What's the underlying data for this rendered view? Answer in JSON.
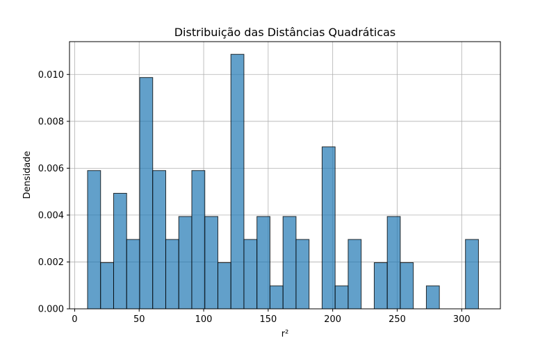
{
  "chart_data": {
    "type": "bar",
    "title": "Distribuição das Distâncias Quadráticas",
    "xlabel": "r²",
    "ylabel": "Densidade",
    "xlim": [
      -4,
      330
    ],
    "ylim": [
      0,
      0.0114
    ],
    "xticks": [
      0,
      50,
      100,
      150,
      200,
      250,
      300
    ],
    "xtick_labels": [
      "0",
      "50",
      "100",
      "150",
      "200",
      "250",
      "300"
    ],
    "yticks": [
      0.0,
      0.002,
      0.004,
      0.006,
      0.008,
      0.01
    ],
    "ytick_labels": [
      "0.000",
      "0.002",
      "0.004",
      "0.006",
      "0.008",
      "0.010"
    ],
    "grid": true,
    "bin_edges": [
      10,
      20.1,
      30.2,
      40.3,
      50.4,
      60.5,
      70.6,
      80.7,
      90.8,
      100.9,
      111.0,
      121.1,
      131.2,
      141.3,
      151.4,
      161.5,
      171.6,
      181.7,
      191.8,
      201.9,
      212.0,
      222.1,
      232.2,
      242.3,
      252.4,
      262.5,
      272.6,
      282.7,
      292.8,
      302.9,
      313.0
    ],
    "values": [
      0.0059,
      0.00197,
      0.00493,
      0.00296,
      0.00987,
      0.0059,
      0.00296,
      0.00394,
      0.0059,
      0.00394,
      0.00197,
      0.01086,
      0.00296,
      0.00394,
      0.00098,
      0.00394,
      0.00296,
      0.0,
      0.00691,
      0.00098,
      0.00296,
      0.0,
      0.00197,
      0.00394,
      0.00197,
      0.0,
      0.00098,
      0.0,
      0.0,
      0.00296
    ]
  }
}
